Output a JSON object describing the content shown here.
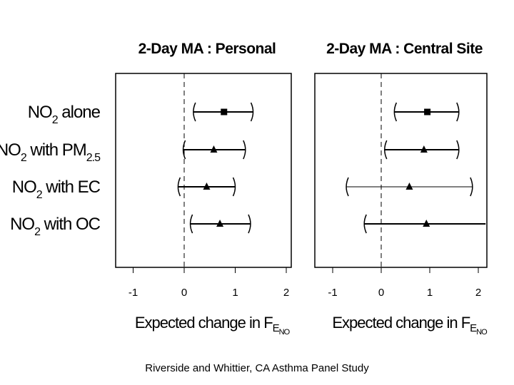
{
  "caption": "Riverside and Whittier, CA Asthma Panel Study",
  "chart_data": {
    "type": "forest",
    "rows": [
      {
        "main": "NO",
        "sub": "2",
        "rest": " alone",
        "sub2": ""
      },
      {
        "main": "NO",
        "sub": "2",
        "rest": " with PM",
        "sub2": "2.5"
      },
      {
        "main": "NO",
        "sub": "2",
        "rest": " with EC",
        "sub2": ""
      },
      {
        "main": "NO",
        "sub": "2",
        "rest": " with OC",
        "sub2": ""
      }
    ],
    "markers": [
      "square",
      "triangle",
      "triangle",
      "triangle"
    ],
    "xlim": [
      -1.1,
      2.15
    ],
    "xticks": [
      "-1",
      "0",
      "1",
      "2"
    ],
    "reference_line": 0,
    "xlabel": {
      "text": "Expected change in F",
      "sub": "E",
      "subsub": "NO"
    },
    "panels": [
      {
        "title": "2-Day MA : Personal",
        "series": [
          {
            "estimate": 0.78,
            "lower": 0.18,
            "upper": 1.35
          },
          {
            "estimate": 0.58,
            "lower": -0.02,
            "upper": 1.2
          },
          {
            "estimate": 0.44,
            "lower": -0.12,
            "upper": 1.0
          },
          {
            "estimate": 0.7,
            "lower": 0.12,
            "upper": 1.3
          }
        ]
      },
      {
        "title": "2-Day MA : Central Site",
        "series": [
          {
            "estimate": 0.95,
            "lower": 0.27,
            "upper": 1.6
          },
          {
            "estimate": 0.88,
            "lower": 0.07,
            "upper": 1.6
          },
          {
            "estimate": 0.58,
            "lower": -0.72,
            "upper": 1.88
          },
          {
            "estimate": 0.93,
            "lower": -0.35,
            "upper": 2.15
          }
        ]
      }
    ]
  }
}
